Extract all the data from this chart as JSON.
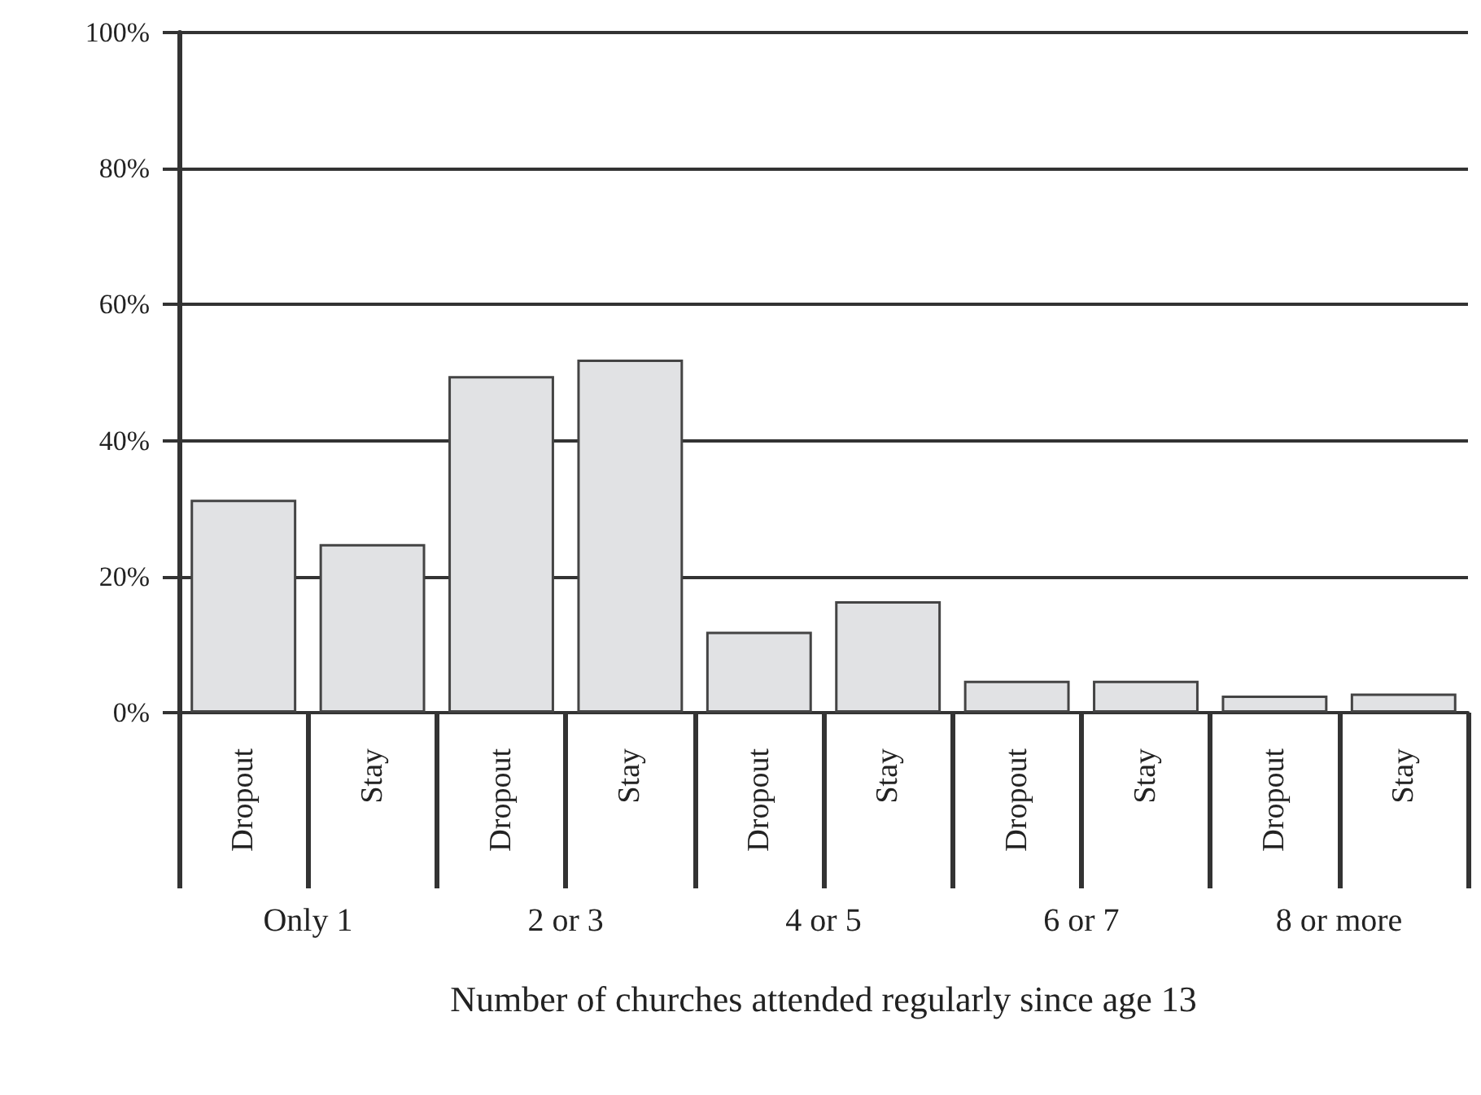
{
  "chart_data": {
    "type": "bar",
    "xlabel": "Number of churches attended regularly since age 13",
    "categories": [
      "Dropout",
      "Stay",
      "Dropout",
      "Stay",
      "Dropout",
      "Stay",
      "Dropout",
      "Stay",
      "Dropout",
      "Stay"
    ],
    "values": [
      31.3,
      24.8,
      49.5,
      51.9,
      11.9,
      16.4,
      4.7,
      4.7,
      2.5,
      2.8
    ],
    "color": "#e1e2e4",
    "annotations": [
      "Only 1",
      "2 or 3",
      "4 or 5",
      "6 or 7",
      "8 or more"
    ],
    "ylim": [
      0,
      100
    ],
    "yticks": [
      {
        "value": 0,
        "label": "0%"
      },
      {
        "value": 20,
        "label": "20%"
      },
      {
        "value": 40,
        "label": "40%"
      },
      {
        "value": 60,
        "label": "60%"
      },
      {
        "value": 80,
        "label": "80%"
      },
      {
        "value": 100,
        "label": "100%"
      }
    ],
    "grid": "y"
  }
}
